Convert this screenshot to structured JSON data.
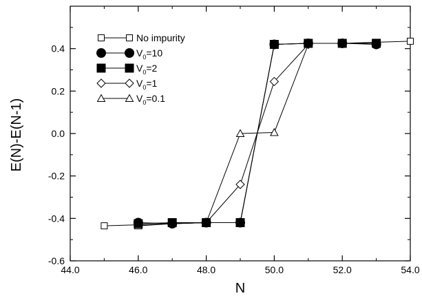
{
  "chart_data": {
    "type": "line",
    "xlabel": "N",
    "ylabel": "E(N)-E(N-1)",
    "xlim": [
      44.0,
      54.0
    ],
    "ylim": [
      -0.6,
      0.6
    ],
    "xticks": [
      "44.0",
      "46.0",
      "48.0",
      "50.0",
      "52.0",
      "54.0"
    ],
    "yticks": [
      "-0.6",
      "-0.4",
      "-0.2",
      "0.0",
      "0.2",
      "0.4"
    ],
    "legend_position": "upper-left",
    "series": [
      {
        "name": "No impurity",
        "legend": {
          "main": "No impurity",
          "sub": "",
          "tail": ""
        },
        "marker": "open-square",
        "color": "#000000",
        "x": [
          45,
          46,
          47,
          48,
          49,
          50,
          51,
          52,
          53,
          54
        ],
        "y": [
          -0.435,
          -0.43,
          -0.425,
          -0.42,
          -0.42,
          0.42,
          0.425,
          0.425,
          0.43,
          0.435
        ]
      },
      {
        "name": "V0=10",
        "legend": {
          "main": "V",
          "sub": "0",
          "tail": "=10"
        },
        "marker": "filled-circle",
        "color": "#000000",
        "x": [
          46,
          47,
          48,
          49,
          50,
          51,
          52,
          53
        ],
        "y": [
          -0.42,
          -0.425,
          -0.42,
          -0.42,
          0.42,
          0.425,
          0.425,
          0.42
        ]
      },
      {
        "name": "V0=2",
        "legend": {
          "main": "V",
          "sub": "0",
          "tail": "=2"
        },
        "marker": "filled-square",
        "color": "#000000",
        "x": [
          46,
          47,
          48,
          49,
          50,
          51,
          52,
          53
        ],
        "y": [
          -0.425,
          -0.42,
          -0.42,
          -0.42,
          0.42,
          0.425,
          0.425,
          0.425
        ]
      },
      {
        "name": "V0=1",
        "legend": {
          "main": "V",
          "sub": "0",
          "tail": "=1"
        },
        "marker": "open-diamond",
        "color": "#000000",
        "x": [
          48,
          49,
          50,
          51
        ],
        "y": [
          -0.42,
          -0.24,
          0.245,
          0.42
        ]
      },
      {
        "name": "V0=0.1",
        "legend": {
          "main": "V",
          "sub": "0",
          "tail": "=0.1"
        },
        "marker": "open-triangle",
        "color": "#000000",
        "x": [
          46,
          47,
          48,
          49,
          50,
          51
        ],
        "y": [
          -0.435,
          -0.425,
          -0.42,
          0.0,
          0.005,
          0.42
        ]
      }
    ]
  }
}
